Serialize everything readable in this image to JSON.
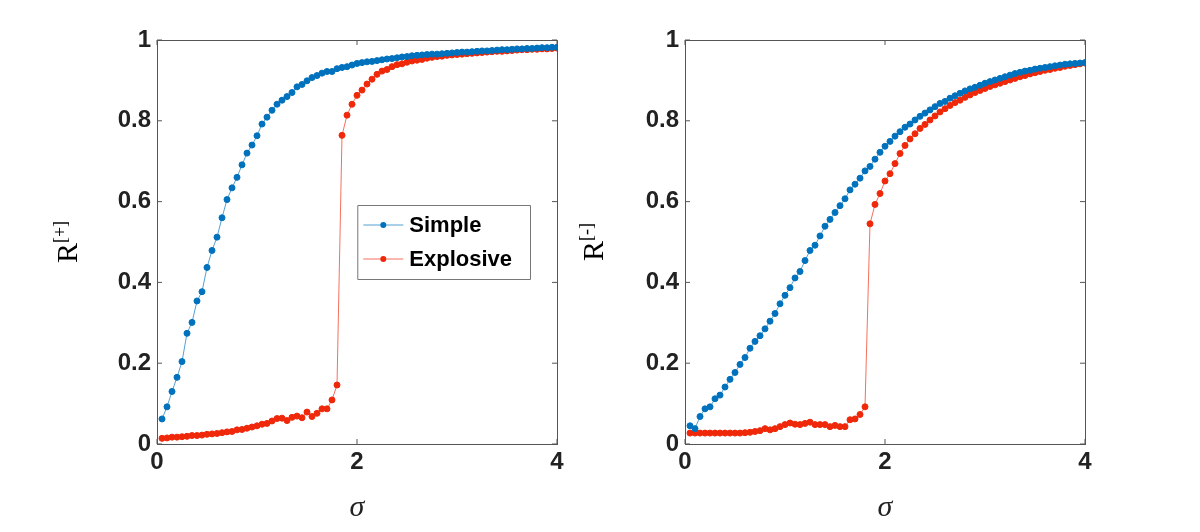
{
  "chart_data": [
    {
      "type": "line",
      "xlabel": "σ",
      "ylabel": "R$^{[+]}$",
      "xlim": [
        0,
        4
      ],
      "xticks": [
        0,
        2,
        4
      ],
      "ylim": [
        0,
        1
      ],
      "yticks": [
        0,
        0.2,
        0.4,
        0.6,
        0.8,
        1
      ],
      "marker": "circle",
      "legend": "right",
      "x": [
        0.05,
        0.1,
        0.15,
        0.2,
        0.25,
        0.3,
        0.35,
        0.4,
        0.45,
        0.5,
        0.55,
        0.6,
        0.65,
        0.7,
        0.75,
        0.8,
        0.85,
        0.9,
        0.95,
        1,
        1.05,
        1.1,
        1.15,
        1.2,
        1.25,
        1.3,
        1.35,
        1.4,
        1.45,
        1.5,
        1.55,
        1.6,
        1.65,
        1.7,
        1.75,
        1.8,
        1.85,
        1.9,
        1.95,
        2,
        2.05,
        2.1,
        2.15,
        2.2,
        2.25,
        2.3,
        2.35,
        2.4,
        2.45,
        2.5,
        2.55,
        2.6,
        2.65,
        2.7,
        2.75,
        2.8,
        2.85,
        2.9,
        2.95,
        3,
        3.05,
        3.1,
        3.15,
        3.2,
        3.25,
        3.3,
        3.35,
        3.4,
        3.45,
        3.5,
        3.55,
        3.6,
        3.65,
        3.7,
        3.75,
        3.8,
        3.85,
        3.9,
        3.95,
        4
      ],
      "series": [
        {
          "name": "Simple",
          "color": "#0072bd",
          "values": [
            0.062,
            0.092,
            0.13,
            0.165,
            0.204,
            0.274,
            0.301,
            0.354,
            0.377,
            0.437,
            0.479,
            0.512,
            0.56,
            0.605,
            0.634,
            0.66,
            0.691,
            0.72,
            0.74,
            0.763,
            0.792,
            0.809,
            0.826,
            0.841,
            0.851,
            0.86,
            0.87,
            0.884,
            0.89,
            0.899,
            0.907,
            0.912,
            0.918,
            0.922,
            0.922,
            0.929,
            0.932,
            0.934,
            0.938,
            0.942,
            0.944,
            0.946,
            0.947,
            0.949,
            0.951,
            0.953,
            0.954,
            0.956,
            0.958,
            0.959,
            0.961,
            0.962,
            0.963,
            0.964,
            0.965,
            0.965,
            0.966,
            0.967,
            0.968,
            0.969,
            0.97,
            0.97,
            0.971,
            0.972,
            0.973,
            0.973,
            0.974,
            0.975,
            0.976,
            0.976,
            0.977,
            0.978,
            0.978,
            0.979,
            0.979,
            0.98,
            0.981,
            0.981,
            0.982,
            0.982
          ]
        },
        {
          "name": "Explosive",
          "color": "#f0280a",
          "values": [
            0.014,
            0.015,
            0.017,
            0.017,
            0.018,
            0.019,
            0.021,
            0.021,
            0.022,
            0.024,
            0.025,
            0.026,
            0.028,
            0.03,
            0.031,
            0.035,
            0.036,
            0.039,
            0.042,
            0.045,
            0.049,
            0.051,
            0.057,
            0.063,
            0.064,
            0.058,
            0.066,
            0.069,
            0.065,
            0.079,
            0.068,
            0.076,
            0.087,
            0.087,
            0.109,
            0.146,
            0.764,
            0.814,
            0.841,
            0.863,
            0.876,
            0.891,
            0.903,
            0.915,
            0.923,
            0.927,
            0.934,
            0.939,
            0.941,
            0.945,
            0.948,
            0.95,
            0.952,
            0.955,
            0.957,
            0.959,
            0.96,
            0.962,
            0.963,
            0.964,
            0.965,
            0.966,
            0.967,
            0.968,
            0.969,
            0.97,
            0.971,
            0.972,
            0.972,
            0.973,
            0.974,
            0.975,
            0.976,
            0.976,
            0.977,
            0.977,
            0.978,
            0.978,
            0.979,
            0.98
          ]
        }
      ]
    },
    {
      "type": "line",
      "xlabel": "σ",
      "ylabel": "R$^{[-]}$",
      "xlim": [
        0,
        4
      ],
      "xticks": [
        0,
        2,
        4
      ],
      "ylim": [
        0,
        1
      ],
      "yticks": [
        0,
        0.2,
        0.4,
        0.6,
        0.8,
        1
      ],
      "marker": "circle",
      "x": [
        0.05,
        0.1,
        0.15,
        0.2,
        0.25,
        0.3,
        0.35,
        0.4,
        0.45,
        0.5,
        0.55,
        0.6,
        0.65,
        0.7,
        0.75,
        0.8,
        0.85,
        0.9,
        0.95,
        1,
        1.05,
        1.1,
        1.15,
        1.2,
        1.25,
        1.3,
        1.35,
        1.4,
        1.45,
        1.5,
        1.55,
        1.6,
        1.65,
        1.7,
        1.75,
        1.8,
        1.85,
        1.9,
        1.95,
        2,
        2.05,
        2.1,
        2.15,
        2.2,
        2.25,
        2.3,
        2.35,
        2.4,
        2.45,
        2.5,
        2.55,
        2.6,
        2.65,
        2.7,
        2.75,
        2.8,
        2.85,
        2.9,
        2.95,
        3,
        3.05,
        3.1,
        3.15,
        3.2,
        3.25,
        3.3,
        3.35,
        3.4,
        3.45,
        3.5,
        3.55,
        3.6,
        3.65,
        3.7,
        3.75,
        3.8,
        3.85,
        3.9,
        3.95,
        4
      ],
      "series": [
        {
          "color": "#0072bd",
          "values": [
            0.045,
            0.038,
            0.068,
            0.087,
            0.092,
            0.112,
            0.121,
            0.141,
            0.16,
            0.177,
            0.197,
            0.214,
            0.237,
            0.254,
            0.268,
            0.285,
            0.304,
            0.323,
            0.347,
            0.368,
            0.387,
            0.411,
            0.427,
            0.454,
            0.479,
            0.492,
            0.515,
            0.539,
            0.556,
            0.573,
            0.59,
            0.607,
            0.629,
            0.643,
            0.658,
            0.676,
            0.687,
            0.705,
            0.722,
            0.737,
            0.749,
            0.762,
            0.773,
            0.784,
            0.792,
            0.802,
            0.811,
            0.819,
            0.827,
            0.835,
            0.843,
            0.848,
            0.856,
            0.862,
            0.868,
            0.874,
            0.879,
            0.883,
            0.888,
            0.893,
            0.897,
            0.901,
            0.905,
            0.909,
            0.913,
            0.917,
            0.92,
            0.923,
            0.925,
            0.928,
            0.93,
            0.932,
            0.934,
            0.936,
            0.938,
            0.94,
            0.941,
            0.942,
            0.943,
            0.944
          ]
        },
        {
          "color": "#f0280a",
          "values": [
            0.027,
            0.027,
            0.027,
            0.027,
            0.027,
            0.027,
            0.027,
            0.027,
            0.027,
            0.027,
            0.027,
            0.028,
            0.029,
            0.031,
            0.033,
            0.038,
            0.035,
            0.038,
            0.043,
            0.048,
            0.052,
            0.049,
            0.048,
            0.051,
            0.054,
            0.048,
            0.048,
            0.048,
            0.043,
            0.046,
            0.043,
            0.043,
            0.06,
            0.062,
            0.073,
            0.092,
            0.545,
            0.593,
            0.62,
            0.651,
            0.669,
            0.694,
            0.719,
            0.739,
            0.755,
            0.768,
            0.781,
            0.791,
            0.802,
            0.812,
            0.822,
            0.83,
            0.838,
            0.845,
            0.851,
            0.858,
            0.864,
            0.87,
            0.875,
            0.88,
            0.885,
            0.889,
            0.893,
            0.897,
            0.901,
            0.905,
            0.909,
            0.912,
            0.916,
            0.919,
            0.922,
            0.925,
            0.927,
            0.93,
            0.932,
            0.935,
            0.937,
            0.939,
            0.941,
            0.943
          ]
        }
      ]
    }
  ]
}
